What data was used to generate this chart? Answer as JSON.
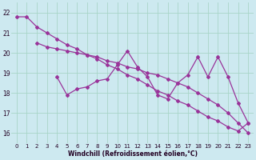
{
  "background_color": "#cde9f0",
  "grid_color": "#a8d5c8",
  "line_color": "#993399",
  "xlabel": "Windchill (Refroidissement éolien,°C)",
  "xlim": [
    -0.5,
    23.5
  ],
  "ylim": [
    15.5,
    22.5
  ],
  "yticks": [
    16,
    17,
    18,
    19,
    20,
    21,
    22
  ],
  "xticks": [
    0,
    1,
    2,
    3,
    4,
    5,
    6,
    7,
    8,
    9,
    10,
    11,
    12,
    13,
    14,
    15,
    16,
    17,
    18,
    19,
    20,
    21,
    22,
    23
  ],
  "series1_x": [
    0,
    1,
    2,
    3,
    4,
    5,
    6,
    7,
    8,
    9,
    10,
    11,
    12,
    13,
    14,
    15,
    16,
    17,
    18,
    19,
    20,
    21,
    22,
    23
  ],
  "series1_y": [
    21.8,
    21.8,
    21.3,
    21.0,
    20.7,
    20.4,
    20.2,
    19.9,
    19.7,
    19.4,
    19.2,
    18.9,
    18.7,
    18.4,
    18.1,
    17.9,
    17.6,
    17.4,
    17.1,
    16.8,
    16.6,
    16.3,
    16.1,
    16.5
  ],
  "series2_x": [
    2,
    3,
    4,
    5,
    6,
    7,
    8,
    9,
    10,
    11,
    12,
    13,
    14,
    15,
    16,
    17,
    18,
    19,
    20,
    21,
    22,
    23
  ],
  "series2_y": [
    20.5,
    20.3,
    20.2,
    20.1,
    20.0,
    19.9,
    19.8,
    19.6,
    19.5,
    19.3,
    19.2,
    19.0,
    18.9,
    18.7,
    18.5,
    18.3,
    18.0,
    17.7,
    17.4,
    17.0,
    16.5,
    16.0
  ],
  "series3_x": [
    4,
    5,
    6,
    7,
    8,
    9,
    10,
    11,
    12,
    13,
    14,
    15,
    16,
    17,
    18,
    19,
    20,
    21,
    22,
    23
  ],
  "series3_y": [
    18.8,
    17.9,
    18.2,
    18.3,
    18.6,
    18.7,
    19.4,
    20.1,
    19.3,
    18.8,
    17.9,
    17.7,
    18.5,
    18.9,
    19.8,
    18.8,
    19.8,
    18.8,
    17.5,
    16.5
  ]
}
